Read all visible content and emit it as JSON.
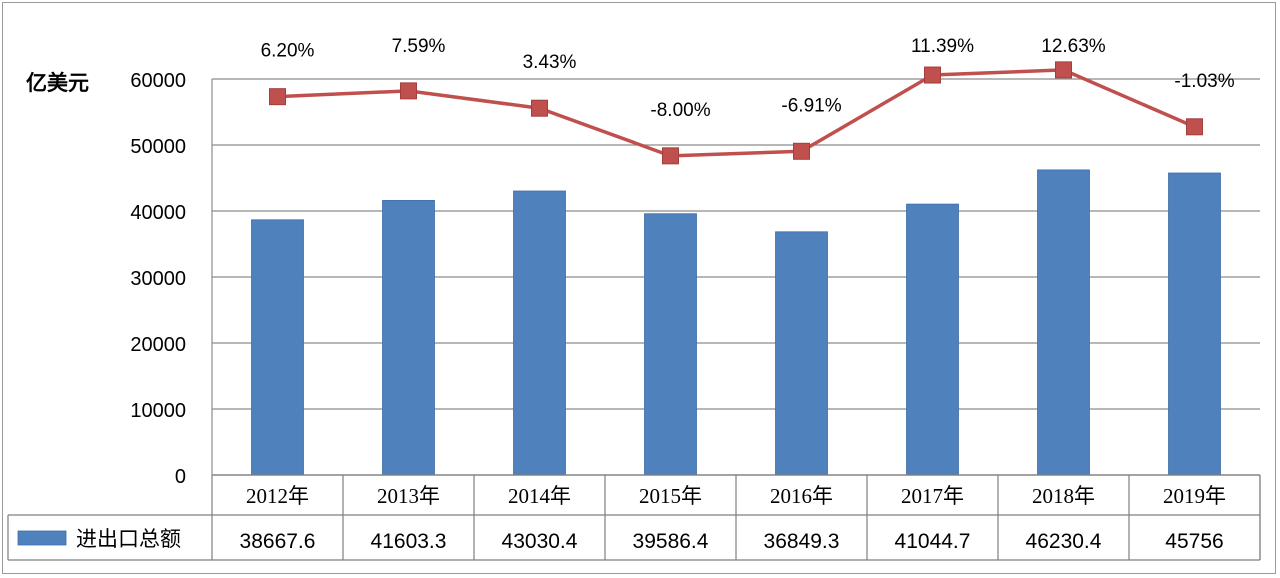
{
  "chart_data": {
    "type": "bar",
    "yunit": "亿美元",
    "categories": [
      "2012年",
      "2013年",
      "2014年",
      "2015年",
      "2016年",
      "2017年",
      "2018年",
      "2019年"
    ],
    "ylim": [
      0,
      60000
    ],
    "yticks": [
      "60000",
      "50000",
      "40000",
      "30000",
      "20000",
      "10000",
      "0"
    ],
    "grid": true,
    "series": [
      {
        "name": "进出口总额",
        "kind": "bar",
        "color": "#4f81bd",
        "values": [
          38667.6,
          41603.3,
          43030.4,
          39586.4,
          36849.3,
          41044.7,
          46230.4,
          45756
        ],
        "table_labels": [
          "38667.6",
          "41603.3",
          "43030.4",
          "39586.4",
          "36849.3",
          "41044.7",
          "46230.4",
          "45756"
        ]
      },
      {
        "kind": "line",
        "color": "#c0504d",
        "values": [
          6.2,
          7.59,
          3.43,
          -8.0,
          -6.91,
          11.39,
          12.63,
          -1.03
        ],
        "labels": [
          "6.20%",
          "7.59%",
          "3.43%",
          "-8.00%",
          "-6.91%",
          "11.39%",
          "12.63%",
          "-1.03%"
        ]
      }
    ]
  }
}
